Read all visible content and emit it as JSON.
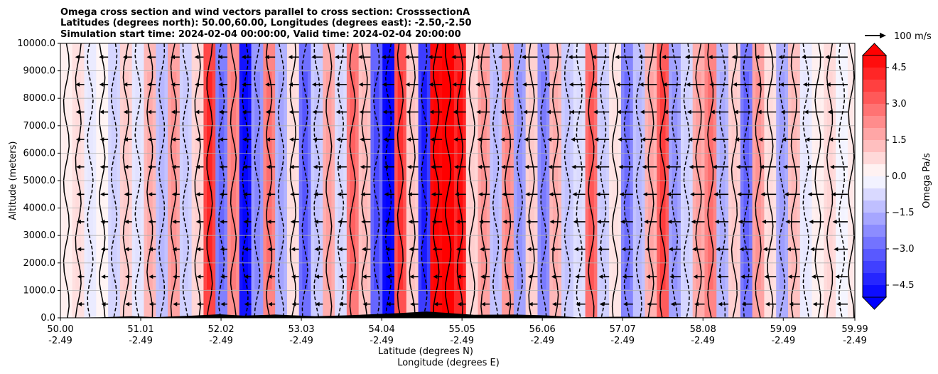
{
  "chart_data": {
    "type": "heatmap",
    "title_lines": [
      "Omega cross section and wind vectors parallel to cross section: CrosssectionA",
      "Latitudes (degrees north): 50.00,60.00, Longitudes (degrees east): -2.50,-2.50",
      "Simulation start time: 2024-02-04 00:00:00, Valid time: 2024-02-04 20:00:00"
    ],
    "ylabel": "Altitude (meters)",
    "xlabel_lines": [
      "Latitude (degrees N)",
      "Longitude (degrees E)"
    ],
    "y_ticks": [
      "0.0",
      "1000.0",
      "2000.0",
      "3000.0",
      "4000.0",
      "5000.0",
      "6000.0",
      "7000.0",
      "8000.0",
      "9000.0",
      "10000.0"
    ],
    "ylim": [
      0,
      10000
    ],
    "x_ticks": [
      {
        "lat": "50.00",
        "lon": "-2.49"
      },
      {
        "lat": "51.01",
        "lon": "-2.49"
      },
      {
        "lat": "52.02",
        "lon": "-2.49"
      },
      {
        "lat": "53.03",
        "lon": "-2.49"
      },
      {
        "lat": "54.04",
        "lon": "-2.49"
      },
      {
        "lat": "55.05",
        "lon": "-2.49"
      },
      {
        "lat": "56.06",
        "lon": "-2.49"
      },
      {
        "lat": "57.07",
        "lon": "-2.49"
      },
      {
        "lat": "58.08",
        "lon": "-2.49"
      },
      {
        "lat": "59.09",
        "lon": "-2.49"
      },
      {
        "lat": "59.99",
        "lon": "-2.49"
      }
    ],
    "xlim": [
      50.0,
      59.99
    ],
    "grid": "horizontal",
    "colorbar": {
      "label": "Omega Pa/s",
      "ticks": [
        "4.5",
        "3.0",
        "1.5",
        "0.0",
        "−1.5",
        "−3.0",
        "−4.5"
      ],
      "range": [
        -5.0,
        5.0
      ],
      "colors_positive": "#ff0000",
      "colors_negative": "#0000ff",
      "extend": "both"
    },
    "quiver_key": "100 m/s",
    "omega_columns": [
      {
        "lat": 50.0,
        "w": 0.3
      },
      {
        "lat": 50.15,
        "w": 0.6
      },
      {
        "lat": 50.3,
        "w": -0.4
      },
      {
        "lat": 50.45,
        "w": 0.2
      },
      {
        "lat": 50.6,
        "w": -0.8
      },
      {
        "lat": 50.75,
        "w": 0.9
      },
      {
        "lat": 50.9,
        "w": -0.5
      },
      {
        "lat": 51.05,
        "w": 1.4
      },
      {
        "lat": 51.2,
        "w": -1.2
      },
      {
        "lat": 51.35,
        "w": 1.8
      },
      {
        "lat": 51.5,
        "w": -0.9
      },
      {
        "lat": 51.65,
        "w": 0.8
      },
      {
        "lat": 51.8,
        "w": 3.6
      },
      {
        "lat": 51.95,
        "w": -2.5
      },
      {
        "lat": 52.1,
        "w": 2.2
      },
      {
        "lat": 52.25,
        "w": -4.6
      },
      {
        "lat": 52.4,
        "w": -2.0
      },
      {
        "lat": 52.55,
        "w": 2.4
      },
      {
        "lat": 52.7,
        "w": -1.5
      },
      {
        "lat": 52.85,
        "w": 0.6
      },
      {
        "lat": 53.0,
        "w": -2.8
      },
      {
        "lat": 53.15,
        "w": -1.0
      },
      {
        "lat": 53.3,
        "w": 1.6
      },
      {
        "lat": 53.45,
        "w": -0.7
      },
      {
        "lat": 53.6,
        "w": 2.6
      },
      {
        "lat": 53.75,
        "w": 1.2
      },
      {
        "lat": 53.9,
        "w": -3.0
      },
      {
        "lat": 54.05,
        "w": -4.8
      },
      {
        "lat": 54.2,
        "w": 3.4
      },
      {
        "lat": 54.35,
        "w": 1.0
      },
      {
        "lat": 54.5,
        "w": -3.8
      },
      {
        "lat": 54.65,
        "w": 4.8
      },
      {
        "lat": 54.8,
        "w": 5.0
      },
      {
        "lat": 54.95,
        "w": 4.2
      },
      {
        "lat": 55.1,
        "w": 0.8
      },
      {
        "lat": 55.25,
        "w": 1.8
      },
      {
        "lat": 55.4,
        "w": -1.2
      },
      {
        "lat": 55.55,
        "w": 2.0
      },
      {
        "lat": 55.7,
        "w": -1.8
      },
      {
        "lat": 55.85,
        "w": 0.9
      },
      {
        "lat": 56.0,
        "w": -2.2
      },
      {
        "lat": 56.15,
        "w": 1.4
      },
      {
        "lat": 56.3,
        "w": -1.0
      },
      {
        "lat": 56.45,
        "w": -0.6
      },
      {
        "lat": 56.6,
        "w": 2.8
      },
      {
        "lat": 56.75,
        "w": -0.9
      },
      {
        "lat": 56.9,
        "w": 0.5
      },
      {
        "lat": 57.05,
        "w": -2.4
      },
      {
        "lat": 57.2,
        "w": -1.2
      },
      {
        "lat": 57.35,
        "w": 1.5
      },
      {
        "lat": 57.5,
        "w": 3.2
      },
      {
        "lat": 57.65,
        "w": -1.8
      },
      {
        "lat": 57.8,
        "w": -0.8
      },
      {
        "lat": 57.95,
        "w": 1.6
      },
      {
        "lat": 58.1,
        "w": 2.4
      },
      {
        "lat": 58.25,
        "w": -1.4
      },
      {
        "lat": 58.4,
        "w": 0.9
      },
      {
        "lat": 58.55,
        "w": -2.6
      },
      {
        "lat": 58.7,
        "w": 1.8
      },
      {
        "lat": 58.85,
        "w": 0.6
      },
      {
        "lat": 59.0,
        "w": -1.6
      },
      {
        "lat": 59.15,
        "w": 1.2
      },
      {
        "lat": 59.3,
        "w": -0.4
      },
      {
        "lat": 59.45,
        "w": 0.3
      },
      {
        "lat": 59.6,
        "w": 0.7
      },
      {
        "lat": 59.75,
        "w": -0.2
      },
      {
        "lat": 59.9,
        "w": 0.4
      },
      {
        "lat": 59.99,
        "w": 0.2
      }
    ],
    "wind_vectors_rows_m": [
      500,
      1500,
      2500,
      3500,
      4500,
      5500,
      6500,
      7500,
      8500,
      9500
    ]
  }
}
